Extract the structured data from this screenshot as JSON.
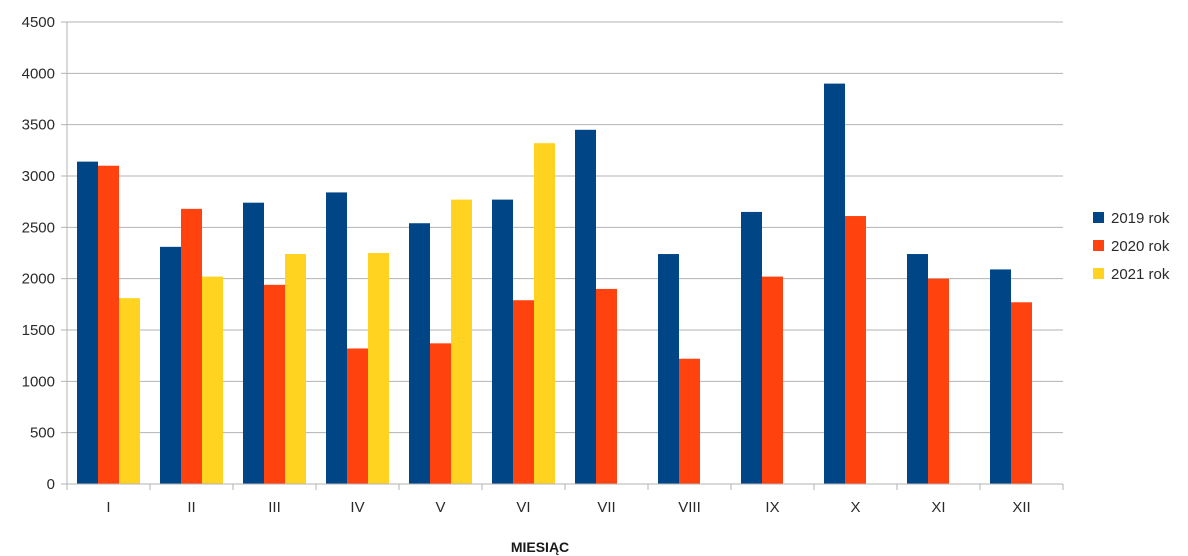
{
  "chart_data": {
    "type": "bar",
    "title": "",
    "xlabel": "MIESIĄC",
    "ylabel": "",
    "ylim": [
      0,
      4500
    ],
    "yticks": [
      0,
      500,
      1000,
      1500,
      2000,
      2500,
      3000,
      3500,
      4000,
      4500
    ],
    "grid": true,
    "legend_position": "right",
    "categories": [
      "I",
      "II",
      "III",
      "IV",
      "V",
      "VI",
      "VII",
      "VIII",
      "IX",
      "X",
      "XI",
      "XII"
    ],
    "series": [
      {
        "name": "2019 rok",
        "color": "#004586",
        "values": [
          3140,
          2310,
          2740,
          2840,
          2540,
          2770,
          3450,
          2240,
          2650,
          3900,
          2240,
          2090
        ]
      },
      {
        "name": "2020 rok",
        "color": "#ff420e",
        "values": [
          3100,
          2680,
          1940,
          1320,
          1370,
          1790,
          1900,
          1220,
          2020,
          2610,
          2000,
          1770
        ]
      },
      {
        "name": "2021 rok",
        "color": "#ffd320",
        "values": [
          1810,
          2020,
          2240,
          2250,
          2770,
          3320,
          null,
          null,
          null,
          null,
          null,
          null
        ]
      }
    ]
  }
}
